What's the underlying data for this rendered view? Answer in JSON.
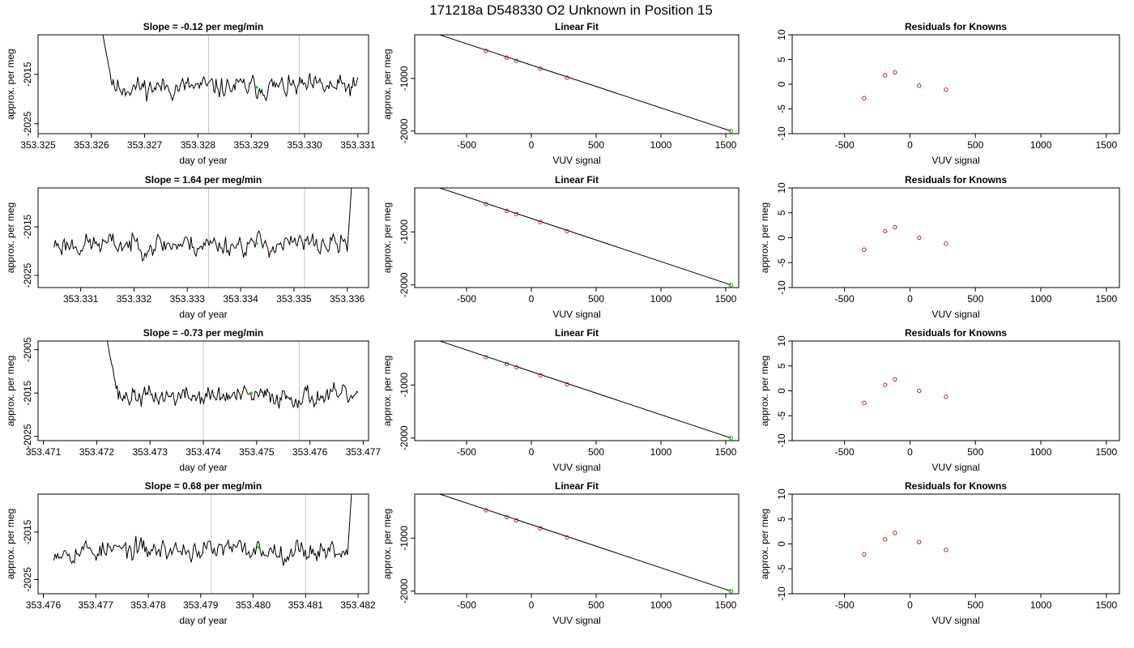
{
  "page_title": "171218a     D548330   O2 Unknown in Position  15",
  "chart_data": [
    {
      "row": 1,
      "panel": "time",
      "type": "line",
      "title": "Slope =  -0.12  per meg/min",
      "xlabel": "day of year",
      "ylabel": "approx. per meg",
      "xlim": [
        353.325,
        353.3312
      ],
      "ylim": [
        -2027,
        -2007
      ],
      "xticks": [
        "353.325",
        "353.326",
        "353.327",
        "353.328",
        "353.329",
        "353.330",
        "353.331"
      ],
      "yticks": [
        "-2015",
        "-2025"
      ],
      "start_x": 353.3262,
      "end_x": 353.331,
      "start_y": -2006,
      "series_mean": -2017.6,
      "noise": 1.8,
      "seed": 11,
      "vlines": [
        353.3282,
        353.3299
      ],
      "marker": {
        "x": 353.3291,
        "y": -2017.6,
        "color": "#22cc22"
      }
    },
    {
      "row": 1,
      "panel": "fit",
      "type": "scatter",
      "title": "Linear Fit",
      "xlabel": "VUV signal",
      "ylabel": "approx. per meg",
      "xlim": [
        -900,
        1600
      ],
      "ylim": [
        -2050,
        -170
      ],
      "xticks": [
        "-500",
        "0",
        "500",
        "1000",
        "1500"
      ],
      "yticks": [
        "-1000",
        "-2000"
      ],
      "line": {
        "x": [
          -820,
          1540
        ],
        "y": [
          -78,
          -2000
        ]
      },
      "points": [
        [
          -350,
          -474
        ],
        [
          -190,
          -603
        ],
        [
          -115,
          -665
        ],
        [
          70,
          -815
        ],
        [
          275,
          -985
        ]
      ],
      "unknown": [
        1540,
        -2000
      ]
    },
    {
      "row": 1,
      "panel": "residuals",
      "type": "scatter",
      "title": "Residuals for Knowns",
      "xlabel": "VUV signal",
      "ylabel": "",
      "xlim": [
        -900,
        1600
      ],
      "ylim": [
        -10,
        10
      ],
      "xticks": [
        "-500",
        "0",
        "500",
        "1000",
        "1500"
      ],
      "yticks": [
        "10",
        "5",
        "0",
        "-5",
        "-10"
      ],
      "points": [
        [
          -350,
          -2.8
        ],
        [
          -190,
          1.8
        ],
        [
          -115,
          2.4
        ],
        [
          70,
          -0.3
        ],
        [
          275,
          -1.1
        ]
      ]
    },
    {
      "row": 2,
      "panel": "time",
      "type": "line",
      "title": "Slope =  1.64  per meg/min",
      "xlabel": "day of year",
      "ylabel": "approx. per meg",
      "xlim": [
        353.3302,
        353.3364
      ],
      "ylim": [
        -2027.5,
        -2007
      ],
      "xticks": [
        "353.331",
        "353.332",
        "353.333",
        "353.334",
        "353.335",
        "353.336"
      ],
      "yticks": [
        "-2015",
        "-2025"
      ],
      "start_x": 353.3305,
      "end_x": 353.336,
      "series_mean": -2018.6,
      "noise": 1.9,
      "seed": 23,
      "end_spike": -2007,
      "vlines": [
        353.3334,
        353.3352
      ],
      "marker": {
        "x": 353.3343,
        "y": -2018.4,
        "color": "#22cc22"
      }
    },
    {
      "row": 2,
      "panel": "fit",
      "type": "scatter",
      "title": "Linear Fit",
      "xlabel": "VUV signal",
      "ylabel": "approx. per meg",
      "xlim": [
        -900,
        1600
      ],
      "ylim": [
        -2050,
        -170
      ],
      "xticks": [
        "-500",
        "0",
        "500",
        "1000",
        "1500"
      ],
      "yticks": [
        "-1000",
        "-2000"
      ],
      "line": {
        "x": [
          -820,
          1540
        ],
        "y": [
          -78,
          -2000
        ]
      },
      "points": [
        [
          -350,
          -474
        ],
        [
          -190,
          -603
        ],
        [
          -115,
          -665
        ],
        [
          70,
          -815
        ],
        [
          275,
          -985
        ]
      ],
      "unknown": [
        1540,
        -2000
      ]
    },
    {
      "row": 2,
      "panel": "residuals",
      "type": "scatter",
      "title": "Residuals for Knowns",
      "xlabel": "VUV signal",
      "ylabel": "approx. per meg",
      "xlim": [
        -900,
        1600
      ],
      "ylim": [
        -10,
        10
      ],
      "xticks": [
        "-500",
        "0",
        "500",
        "1000",
        "1500"
      ],
      "yticks": [
        "10",
        "5",
        "0",
        "-5",
        "-10"
      ],
      "points": [
        [
          -350,
          -2.4
        ],
        [
          -190,
          1.3
        ],
        [
          -115,
          2.1
        ],
        [
          70,
          0.0
        ],
        [
          275,
          -1.2
        ]
      ]
    },
    {
      "row": 3,
      "panel": "time",
      "type": "line",
      "title": "Slope =  -0.73  per meg/min",
      "xlabel": "day of year",
      "ylabel": "approx. per meg",
      "xlim": [
        353.4709,
        353.4771
      ],
      "ylim": [
        -2026,
        -2003
      ],
      "xticks": [
        "353.471",
        "353.472",
        "353.473",
        "353.474",
        "353.475",
        "353.476",
        "353.477"
      ],
      "yticks": [
        "-2005",
        "-2015",
        "-2025"
      ],
      "start_x": 353.4722,
      "end_x": 353.4769,
      "start_y": -2003,
      "series_mean": -2015.8,
      "noise": 1.9,
      "seed": 37,
      "vlines": [
        353.474,
        353.4758
      ],
      "marker": {
        "x": 353.4749,
        "y": -2015.0,
        "color": "#22cc22"
      }
    },
    {
      "row": 3,
      "panel": "fit",
      "type": "scatter",
      "title": "Linear Fit",
      "xlabel": "VUV signal",
      "ylabel": "approx. per meg",
      "xlim": [
        -900,
        1600
      ],
      "ylim": [
        -2050,
        -170
      ],
      "xticks": [
        "-500",
        "0",
        "500",
        "1000",
        "1500"
      ],
      "yticks": [
        "-1000",
        "-2000"
      ],
      "line": {
        "x": [
          -820,
          1540
        ],
        "y": [
          -78,
          -2000
        ]
      },
      "points": [
        [
          -350,
          -474
        ],
        [
          -190,
          -603
        ],
        [
          -115,
          -665
        ],
        [
          70,
          -815
        ],
        [
          275,
          -985
        ]
      ],
      "unknown": [
        1540,
        -2000
      ]
    },
    {
      "row": 3,
      "panel": "residuals",
      "type": "scatter",
      "title": "Residuals for Knowns",
      "xlabel": "VUV signal",
      "ylabel": "approx. per meg",
      "xlim": [
        -900,
        1600
      ],
      "ylim": [
        -10,
        10
      ],
      "xticks": [
        "-500",
        "0",
        "500",
        "1000",
        "1500"
      ],
      "yticks": [
        "10",
        "5",
        "0",
        "-5",
        "-10"
      ],
      "points": [
        [
          -350,
          -2.4
        ],
        [
          -190,
          1.2
        ],
        [
          -115,
          2.3
        ],
        [
          70,
          0.0
        ],
        [
          275,
          -1.2
        ]
      ]
    },
    {
      "row": 4,
      "panel": "time",
      "type": "line",
      "title": "Slope =  0.68  per meg/min",
      "xlabel": "day of year",
      "ylabel": "approx. per meg",
      "xlim": [
        353.4759,
        353.4822
      ],
      "ylim": [
        -2028,
        -2007
      ],
      "xticks": [
        "353.476",
        "353.477",
        "353.478",
        "353.479",
        "353.480",
        "353.481",
        "353.482"
      ],
      "yticks": [
        "-2015",
        "-2025"
      ],
      "start_x": 353.4762,
      "end_x": 353.4818,
      "series_mean": -2018.8,
      "noise": 1.9,
      "seed": 53,
      "end_spike": -2006,
      "vlines": [
        353.4792,
        353.481
      ],
      "marker": {
        "x": 353.4801,
        "y": -2018.2,
        "color": "#22cc22"
      }
    },
    {
      "row": 4,
      "panel": "fit",
      "type": "scatter",
      "title": "Linear Fit",
      "xlabel": "VUV signal",
      "ylabel": "approx. per meg",
      "xlim": [
        -900,
        1600
      ],
      "ylim": [
        -2050,
        -170
      ],
      "xticks": [
        "-500",
        "0",
        "500",
        "1000",
        "1500"
      ],
      "yticks": [
        "-1000",
        "-2000"
      ],
      "line": {
        "x": [
          -820,
          1540
        ],
        "y": [
          -78,
          -2000
        ]
      },
      "points": [
        [
          -350,
          -474
        ],
        [
          -190,
          -603
        ],
        [
          -115,
          -665
        ],
        [
          70,
          -815
        ],
        [
          275,
          -985
        ]
      ],
      "unknown": [
        1540,
        -2000
      ]
    },
    {
      "row": 4,
      "panel": "residuals",
      "type": "scatter",
      "title": "Residuals for Knowns",
      "xlabel": "VUV signal",
      "ylabel": "approx. per meg",
      "xlim": [
        -900,
        1600
      ],
      "ylim": [
        -10,
        10
      ],
      "xticks": [
        "-500",
        "0",
        "500",
        "1000",
        "1500"
      ],
      "yticks": [
        "10",
        "5",
        "0",
        "-5",
        "-10"
      ],
      "points": [
        [
          -350,
          -2.1
        ],
        [
          -190,
          0.9
        ],
        [
          -115,
          2.2
        ],
        [
          70,
          0.4
        ],
        [
          275,
          -1.2
        ]
      ]
    }
  ],
  "colors": {
    "series": "#000000",
    "known_point": "#cc2222",
    "unknown_point": "#22cc22",
    "vline": "#c8c8c8"
  }
}
